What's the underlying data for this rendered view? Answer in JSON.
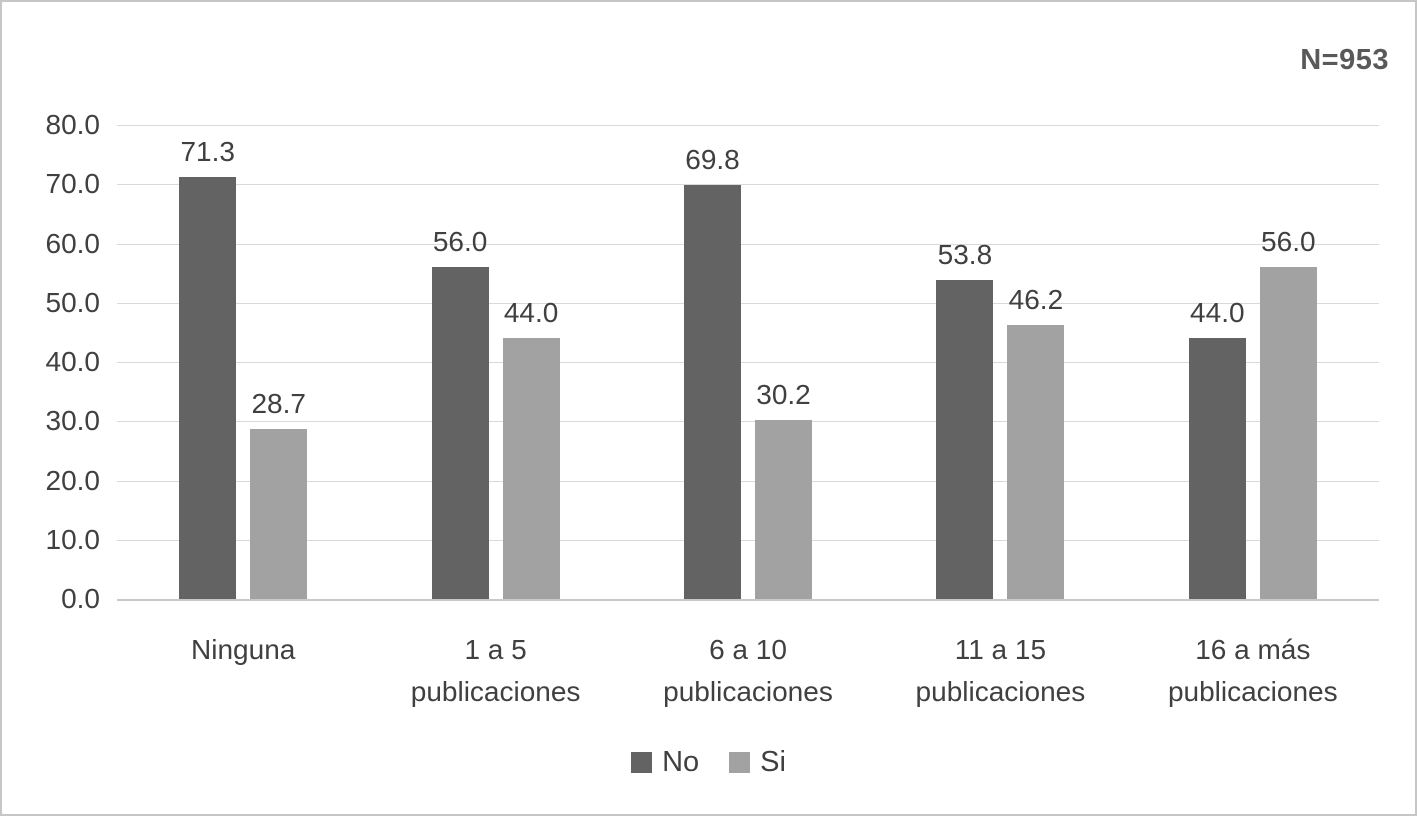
{
  "annotation": "N=953",
  "chart_data": {
    "type": "bar",
    "title": "",
    "annotation": "N=953",
    "categories": [
      "Ninguna",
      "1 a 5 publicaciones",
      "6 a 10 publicaciones",
      "11 a 15 publicaciones",
      "16 a más publicaciones"
    ],
    "category_label_lines": [
      [
        "Ninguna"
      ],
      [
        "1 a 5",
        "publicaciones"
      ],
      [
        "6 a 10",
        "publicaciones"
      ],
      [
        "11 a 15",
        "publicaciones"
      ],
      [
        "16 a más",
        "publicaciones"
      ]
    ],
    "series": [
      {
        "name": "No",
        "color": "#636363",
        "values": [
          71.3,
          56.0,
          69.8,
          53.8,
          44.0
        ]
      },
      {
        "name": "Si",
        "color": "#a2a2a2",
        "values": [
          28.7,
          44.0,
          30.2,
          46.2,
          56.0
        ]
      }
    ],
    "xlabel": "",
    "ylabel": "",
    "ylim": [
      0,
      80
    ],
    "ytick_step": 10,
    "ytick_labels": [
      "0.0",
      "10.0",
      "20.0",
      "30.0",
      "40.0",
      "50.0",
      "60.0",
      "70.0",
      "80.0"
    ],
    "grid": true,
    "legend_position": "bottom",
    "value_label_decimals": 1,
    "colors": {
      "grid": "#d9d9d9",
      "axis": "#c9c9c9",
      "text": "#404040",
      "annotation_text": "#595959",
      "background": "#ffffff",
      "frame_border": "#c6c6c6"
    }
  }
}
